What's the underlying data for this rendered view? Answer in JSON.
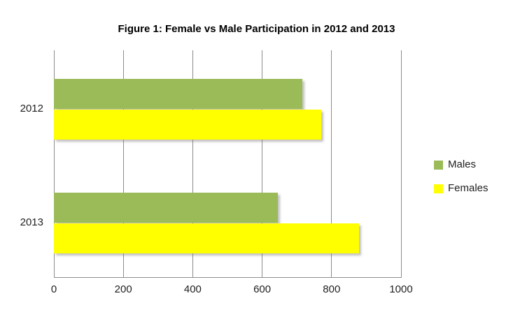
{
  "chart_data": {
    "type": "bar",
    "orientation": "horizontal",
    "title": "Figure 1: Female vs Male Participation in 2012 and 2013",
    "categories": [
      "2012",
      "2013"
    ],
    "series": [
      {
        "name": "Males",
        "color": "#9BBB59",
        "values": [
          715,
          645
        ]
      },
      {
        "name": "Females",
        "color": "#FFFF00",
        "values": [
          770,
          880
        ]
      }
    ],
    "xlim": [
      0,
      1000
    ],
    "x_ticks": [
      "0",
      "200",
      "400",
      "600",
      "800",
      "1000"
    ],
    "legend_position": "right",
    "gridlines": "vertical-major",
    "ylabel": "",
    "xlabel": ""
  },
  "colors": {
    "background": "#FFFFFF",
    "gridline": "#8C8C8C",
    "axis_line": "#8C8C8C",
    "title_text": "#000000",
    "tick_text": "#1F1F1F"
  }
}
